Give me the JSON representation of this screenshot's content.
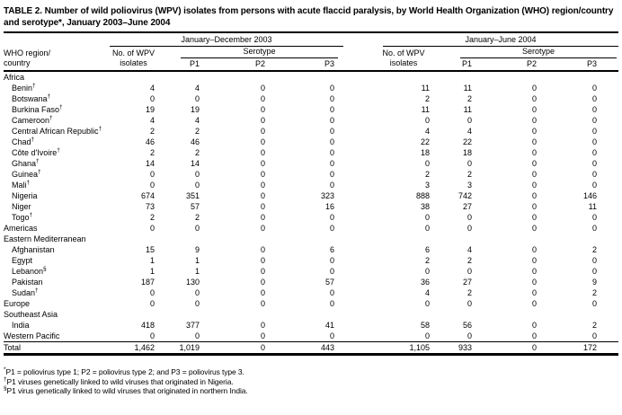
{
  "colors": {
    "background": "#ffffff",
    "text": "#000000",
    "rules": "#000000"
  },
  "title": "TABLE 2. Number of wild poliovirus (WPV) isolates from persons with acute flaccid paralysis, by World Health Organization (WHO) region/country and serotype*, January 2003–June 2004",
  "header": {
    "region_column": {
      "line1": "WHO region/",
      "line2": "country"
    },
    "groups": [
      {
        "period": "January–December 2003",
        "isolates_label": {
          "line1": "No. of WPV",
          "line2": "isolates"
        },
        "serotype_label": "Serotype",
        "serotype_columns": [
          "P1",
          "P2",
          "P3"
        ]
      },
      {
        "period": "January–June 2004",
        "isolates_label": {
          "line1": "No. of WPV",
          "line2": "isolates"
        },
        "serotype_label": "Serotype",
        "serotype_columns": [
          "P1",
          "P2",
          "P3"
        ]
      }
    ]
  },
  "rows": [
    {
      "label": "Africa",
      "level": 0,
      "cells": null
    },
    {
      "label": "Benin",
      "sup": "†",
      "level": 1,
      "cells": [
        "4",
        "4",
        "0",
        "0",
        "11",
        "11",
        "0",
        "0"
      ]
    },
    {
      "label": "Botswana",
      "sup": "†",
      "level": 1,
      "cells": [
        "0",
        "0",
        "0",
        "0",
        "2",
        "2",
        "0",
        "0"
      ]
    },
    {
      "label": "Burkina Faso",
      "sup": "†",
      "level": 1,
      "cells": [
        "19",
        "19",
        "0",
        "0",
        "11",
        "11",
        "0",
        "0"
      ]
    },
    {
      "label": "Cameroon",
      "sup": "†",
      "level": 1,
      "cells": [
        "4",
        "4",
        "0",
        "0",
        "0",
        "0",
        "0",
        "0"
      ]
    },
    {
      "label": "Central African Republic",
      "sup": "†",
      "level": 1,
      "cells": [
        "2",
        "2",
        "0",
        "0",
        "4",
        "4",
        "0",
        "0"
      ]
    },
    {
      "label": "Chad",
      "sup": "†",
      "level": 1,
      "cells": [
        "46",
        "46",
        "0",
        "0",
        "22",
        "22",
        "0",
        "0"
      ]
    },
    {
      "label": "Côte d'Ivoire",
      "sup": "†",
      "level": 1,
      "cells": [
        "2",
        "2",
        "0",
        "0",
        "18",
        "18",
        "0",
        "0"
      ]
    },
    {
      "label": "Ghana",
      "sup": "†",
      "level": 1,
      "cells": [
        "14",
        "14",
        "0",
        "0",
        "0",
        "0",
        "0",
        "0"
      ]
    },
    {
      "label": "Guinea",
      "sup": "†",
      "level": 1,
      "cells": [
        "0",
        "0",
        "0",
        "0",
        "2",
        "2",
        "0",
        "0"
      ]
    },
    {
      "label": "Mali",
      "sup": "†",
      "level": 1,
      "cells": [
        "0",
        "0",
        "0",
        "0",
        "3",
        "3",
        "0",
        "0"
      ]
    },
    {
      "label": "Nigeria",
      "level": 1,
      "cells": [
        "674",
        "351",
        "0",
        "323",
        "888",
        "742",
        "0",
        "146"
      ]
    },
    {
      "label": "Niger",
      "level": 1,
      "cells": [
        "73",
        "57",
        "0",
        "16",
        "38",
        "27",
        "0",
        "11"
      ]
    },
    {
      "label": "Togo",
      "sup": "†",
      "level": 1,
      "cells": [
        "2",
        "2",
        "0",
        "0",
        "0",
        "0",
        "0",
        "0"
      ]
    },
    {
      "label": "Americas",
      "level": 0,
      "cells": [
        "0",
        "0",
        "0",
        "0",
        "0",
        "0",
        "0",
        "0"
      ]
    },
    {
      "label": "Eastern Mediterranean",
      "level": 0,
      "cells": null
    },
    {
      "label": "Afghanistan",
      "level": 1,
      "cells": [
        "15",
        "9",
        "0",
        "6",
        "6",
        "4",
        "0",
        "2"
      ]
    },
    {
      "label": "Egypt",
      "level": 1,
      "cells": [
        "1",
        "1",
        "0",
        "0",
        "2",
        "2",
        "0",
        "0"
      ]
    },
    {
      "label": "Lebanon",
      "sup": "§",
      "level": 1,
      "cells": [
        "1",
        "1",
        "0",
        "0",
        "0",
        "0",
        "0",
        "0"
      ]
    },
    {
      "label": "Pakistan",
      "level": 1,
      "cells": [
        "187",
        "130",
        "0",
        "57",
        "36",
        "27",
        "0",
        "9"
      ]
    },
    {
      "label": "Sudan",
      "sup": "†",
      "level": 1,
      "cells": [
        "0",
        "0",
        "0",
        "0",
        "4",
        "2",
        "0",
        "2"
      ]
    },
    {
      "label": "Europe",
      "level": 0,
      "cells": [
        "0",
        "0",
        "0",
        "0",
        "0",
        "0",
        "0",
        "0"
      ]
    },
    {
      "label": "Southeast Asia",
      "level": 0,
      "cells": null
    },
    {
      "label": "India",
      "level": 1,
      "cells": [
        "418",
        "377",
        "0",
        "41",
        "58",
        "56",
        "0",
        "2"
      ]
    },
    {
      "label": "Western Pacific",
      "level": 0,
      "cells": [
        "0",
        "0",
        "0",
        "0",
        "0",
        "0",
        "0",
        "0"
      ]
    },
    {
      "label": "Total",
      "level": 0,
      "total": true,
      "cells": [
        "1,462",
        "1,019",
        "0",
        "443",
        "1,105",
        "933",
        "0",
        "172"
      ]
    }
  ],
  "footnotes": [
    {
      "marker": "*",
      "text": "P1 = poliovirus type 1; P2 = poliovirus type 2; and P3 = poliovirus type 3."
    },
    {
      "marker": "†",
      "text": "P1 viruses genetically linked to wild viruses that originated in Nigeria."
    },
    {
      "marker": "§",
      "text": "P1 virus genetically linked to wild viruses that originated in northern India."
    }
  ]
}
